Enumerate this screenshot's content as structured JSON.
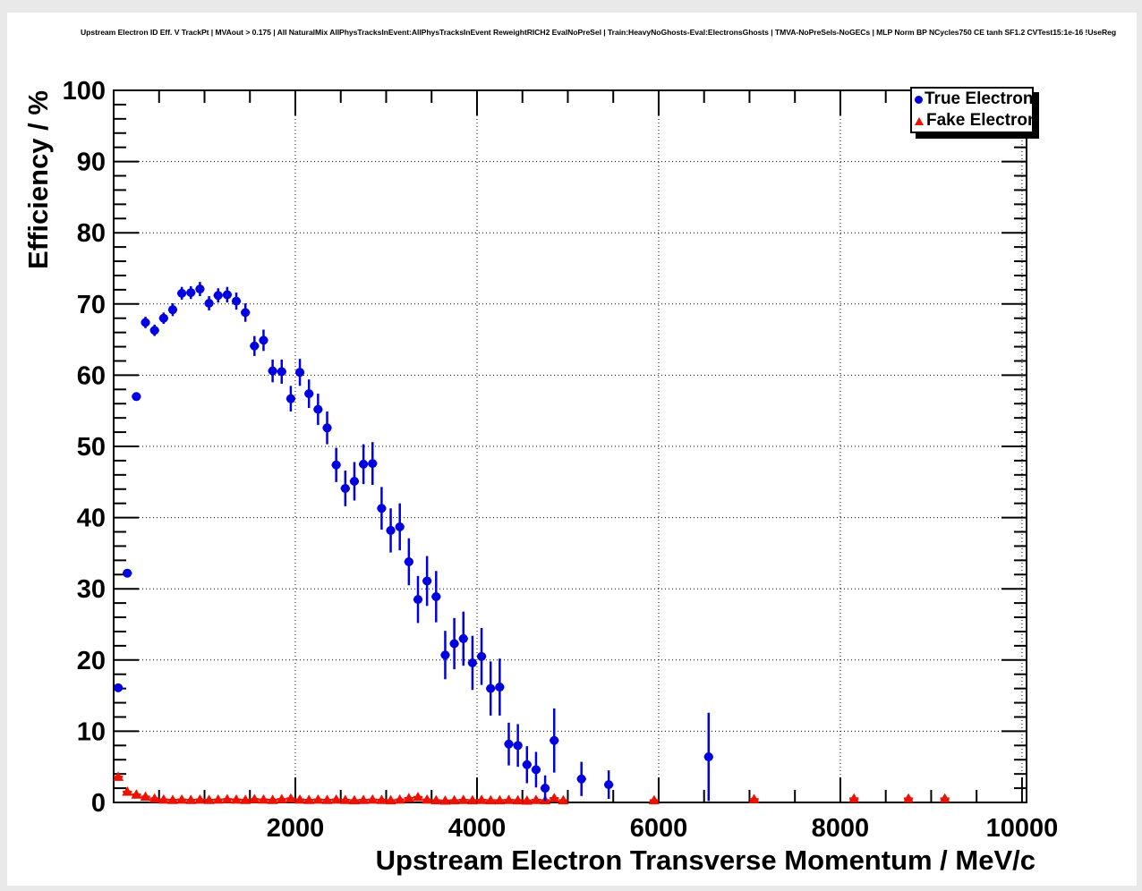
{
  "header": {
    "title": "Upstream Electron ID Eff. V TrackPt | MVAout > 0.175 | All NaturalMix AllPhysTracksInEvent:AllPhysTracksInEvent ReweightRICH2 EvalNoPreSel | Train:HeavyNoGhosts-Eval:ElectronsGhosts | TMVA-NoPreSels-NoGECs | MLP Norm BP NCycles750 CE tanh SF1.2 CVTest15:1e-16 !UseReg"
  },
  "colors": {
    "true_electron": "#0000e0",
    "fake_electron": "#ee1100",
    "frame": "#000000",
    "grid": "#000000",
    "pad_background": "#ffffff",
    "window_background": "#e9e9e9"
  },
  "chart_data": {
    "type": "scatter",
    "title": "Upstream Electron ID Eff. V TrackPt | MVAout > 0.175 | All NaturalMix AllPhysTracksInEvent:AllPhysTracksInEvent ReweightRICH2 EvalNoPreSel | Train:HeavyNoGhosts-Eval:ElectronsGhosts | TMVA-NoPreSels-NoGECs | MLP Norm BP NCycles750 CE tanh SF1.2 CVTest15:1e-16 !UseReg",
    "xlabel": "Upstream Electron Transverse Momentum / MeV/c",
    "ylabel": "Efficiency / %",
    "xlim": [
      0,
      10050
    ],
    "ylim": [
      0,
      100
    ],
    "x_major_ticks": [
      2000,
      4000,
      6000,
      8000,
      10000
    ],
    "x_major_step": 2000,
    "x_minor_step": 500,
    "y_major_ticks": [
      0,
      10,
      20,
      30,
      40,
      50,
      60,
      70,
      80,
      90,
      100
    ],
    "y_major_step": 10,
    "y_minor_step": 2,
    "grid": "dotted-on-major",
    "legend_position": "top-right",
    "series": [
      {
        "name": "True Electron",
        "marker": "circle",
        "color": "#0000e0",
        "bin_half_width": 50,
        "points_format": [
          "x_MeV",
          "efficiency_pct",
          "err_pct"
        ],
        "points": [
          [
            50,
            16.1,
            0.4
          ],
          [
            150,
            32.2,
            0.5
          ],
          [
            250,
            57.0,
            0.6
          ],
          [
            350,
            67.4,
            0.8
          ],
          [
            450,
            66.3,
            0.8
          ],
          [
            550,
            68.0,
            0.8
          ],
          [
            650,
            69.2,
            0.9
          ],
          [
            750,
            71.5,
            0.9
          ],
          [
            850,
            71.6,
            0.9
          ],
          [
            950,
            72.1,
            1.0
          ],
          [
            1050,
            70.1,
            1.0
          ],
          [
            1150,
            71.2,
            1.0
          ],
          [
            1250,
            71.3,
            1.1
          ],
          [
            1350,
            70.4,
            1.2
          ],
          [
            1450,
            68.8,
            1.3
          ],
          [
            1550,
            64.1,
            1.4
          ],
          [
            1650,
            64.9,
            1.5
          ],
          [
            1750,
            60.6,
            1.6
          ],
          [
            1850,
            60.5,
            1.7
          ],
          [
            1950,
            56.7,
            1.8
          ],
          [
            2050,
            60.4,
            1.9
          ],
          [
            2150,
            57.4,
            2.0
          ],
          [
            2250,
            55.2,
            2.2
          ],
          [
            2350,
            52.6,
            2.3
          ],
          [
            2450,
            47.4,
            2.4
          ],
          [
            2550,
            44.1,
            2.5
          ],
          [
            2650,
            45.1,
            2.7
          ],
          [
            2750,
            47.5,
            2.8
          ],
          [
            2850,
            47.6,
            3.0
          ],
          [
            2950,
            41.3,
            3.0
          ],
          [
            3050,
            38.2,
            3.1
          ],
          [
            3150,
            38.7,
            3.3
          ],
          [
            3250,
            33.8,
            3.3
          ],
          [
            3350,
            28.5,
            3.3
          ],
          [
            3450,
            31.1,
            3.5
          ],
          [
            3550,
            28.9,
            3.6
          ],
          [
            3650,
            20.7,
            3.4
          ],
          [
            3750,
            22.3,
            3.6
          ],
          [
            3850,
            23.0,
            3.8
          ],
          [
            3950,
            19.6,
            3.8
          ],
          [
            4050,
            20.5,
            4.0
          ],
          [
            4150,
            16.0,
            3.8
          ],
          [
            4250,
            16.2,
            4.0
          ],
          [
            4350,
            8.2,
            3.0
          ],
          [
            4450,
            8.0,
            3.0
          ],
          [
            4550,
            5.3,
            2.6
          ],
          [
            4650,
            4.6,
            2.5
          ],
          [
            4750,
            2.0,
            1.8
          ],
          [
            4850,
            8.7,
            4.5
          ],
          [
            5150,
            3.3,
            2.4
          ],
          [
            5450,
            2.5,
            2.0
          ],
          [
            6550,
            6.4,
            6.2
          ]
        ]
      },
      {
        "name": "Fake Electron",
        "marker": "triangle",
        "color": "#ee1100",
        "bin_half_width": 50,
        "points_format": [
          "x_MeV",
          "efficiency_pct",
          "err_pct"
        ],
        "points": [
          [
            50,
            3.6,
            0.35
          ],
          [
            150,
            1.5,
            0.2
          ],
          [
            250,
            1.1,
            0.15
          ],
          [
            350,
            0.8,
            0.12
          ],
          [
            450,
            0.55,
            0.1
          ],
          [
            550,
            0.4,
            0.1
          ],
          [
            650,
            0.35,
            0.08
          ],
          [
            750,
            0.4,
            0.08
          ],
          [
            850,
            0.35,
            0.08
          ],
          [
            950,
            0.4,
            0.08
          ],
          [
            1050,
            0.35,
            0.08
          ],
          [
            1150,
            0.4,
            0.08
          ],
          [
            1250,
            0.45,
            0.08
          ],
          [
            1350,
            0.4,
            0.08
          ],
          [
            1450,
            0.35,
            0.08
          ],
          [
            1550,
            0.45,
            0.08
          ],
          [
            1650,
            0.4,
            0.08
          ],
          [
            1750,
            0.35,
            0.08
          ],
          [
            1850,
            0.45,
            0.08
          ],
          [
            1950,
            0.55,
            0.1
          ],
          [
            2050,
            0.4,
            0.08
          ],
          [
            2150,
            0.35,
            0.08
          ],
          [
            2250,
            0.4,
            0.08
          ],
          [
            2350,
            0.35,
            0.08
          ],
          [
            2450,
            0.4,
            0.08
          ],
          [
            2550,
            0.35,
            0.08
          ],
          [
            2650,
            0.3,
            0.08
          ],
          [
            2750,
            0.35,
            0.08
          ],
          [
            2850,
            0.4,
            0.08
          ],
          [
            2950,
            0.35,
            0.08
          ],
          [
            3050,
            0.3,
            0.08
          ],
          [
            3150,
            0.4,
            0.1
          ],
          [
            3250,
            0.6,
            0.12
          ],
          [
            3350,
            0.75,
            0.15
          ],
          [
            3450,
            0.4,
            0.1
          ],
          [
            3550,
            0.3,
            0.08
          ],
          [
            3650,
            0.25,
            0.08
          ],
          [
            3750,
            0.3,
            0.08
          ],
          [
            3850,
            0.35,
            0.08
          ],
          [
            3950,
            0.3,
            0.08
          ],
          [
            4050,
            0.35,
            0.1
          ],
          [
            4150,
            0.3,
            0.08
          ],
          [
            4250,
            0.3,
            0.1
          ],
          [
            4350,
            0.35,
            0.1
          ],
          [
            4450,
            0.3,
            0.1
          ],
          [
            4550,
            0.25,
            0.1
          ],
          [
            4650,
            0.35,
            0.12
          ],
          [
            4750,
            0.3,
            0.12
          ],
          [
            4850,
            0.6,
            0.3
          ],
          [
            4950,
            0.3,
            0.15
          ],
          [
            5950,
            0.3,
            0.2
          ],
          [
            7050,
            0.45,
            0.3
          ],
          [
            8150,
            0.55,
            0.35
          ],
          [
            8750,
            0.55,
            0.35
          ],
          [
            9150,
            0.55,
            0.35
          ]
        ]
      }
    ]
  },
  "legend": {
    "entries": [
      {
        "label": "True Electron",
        "marker": "circle-icon",
        "color": "#0000e0"
      },
      {
        "label": "Fake Electron",
        "marker": "triangle-icon",
        "color": "#ee1100"
      }
    ]
  }
}
